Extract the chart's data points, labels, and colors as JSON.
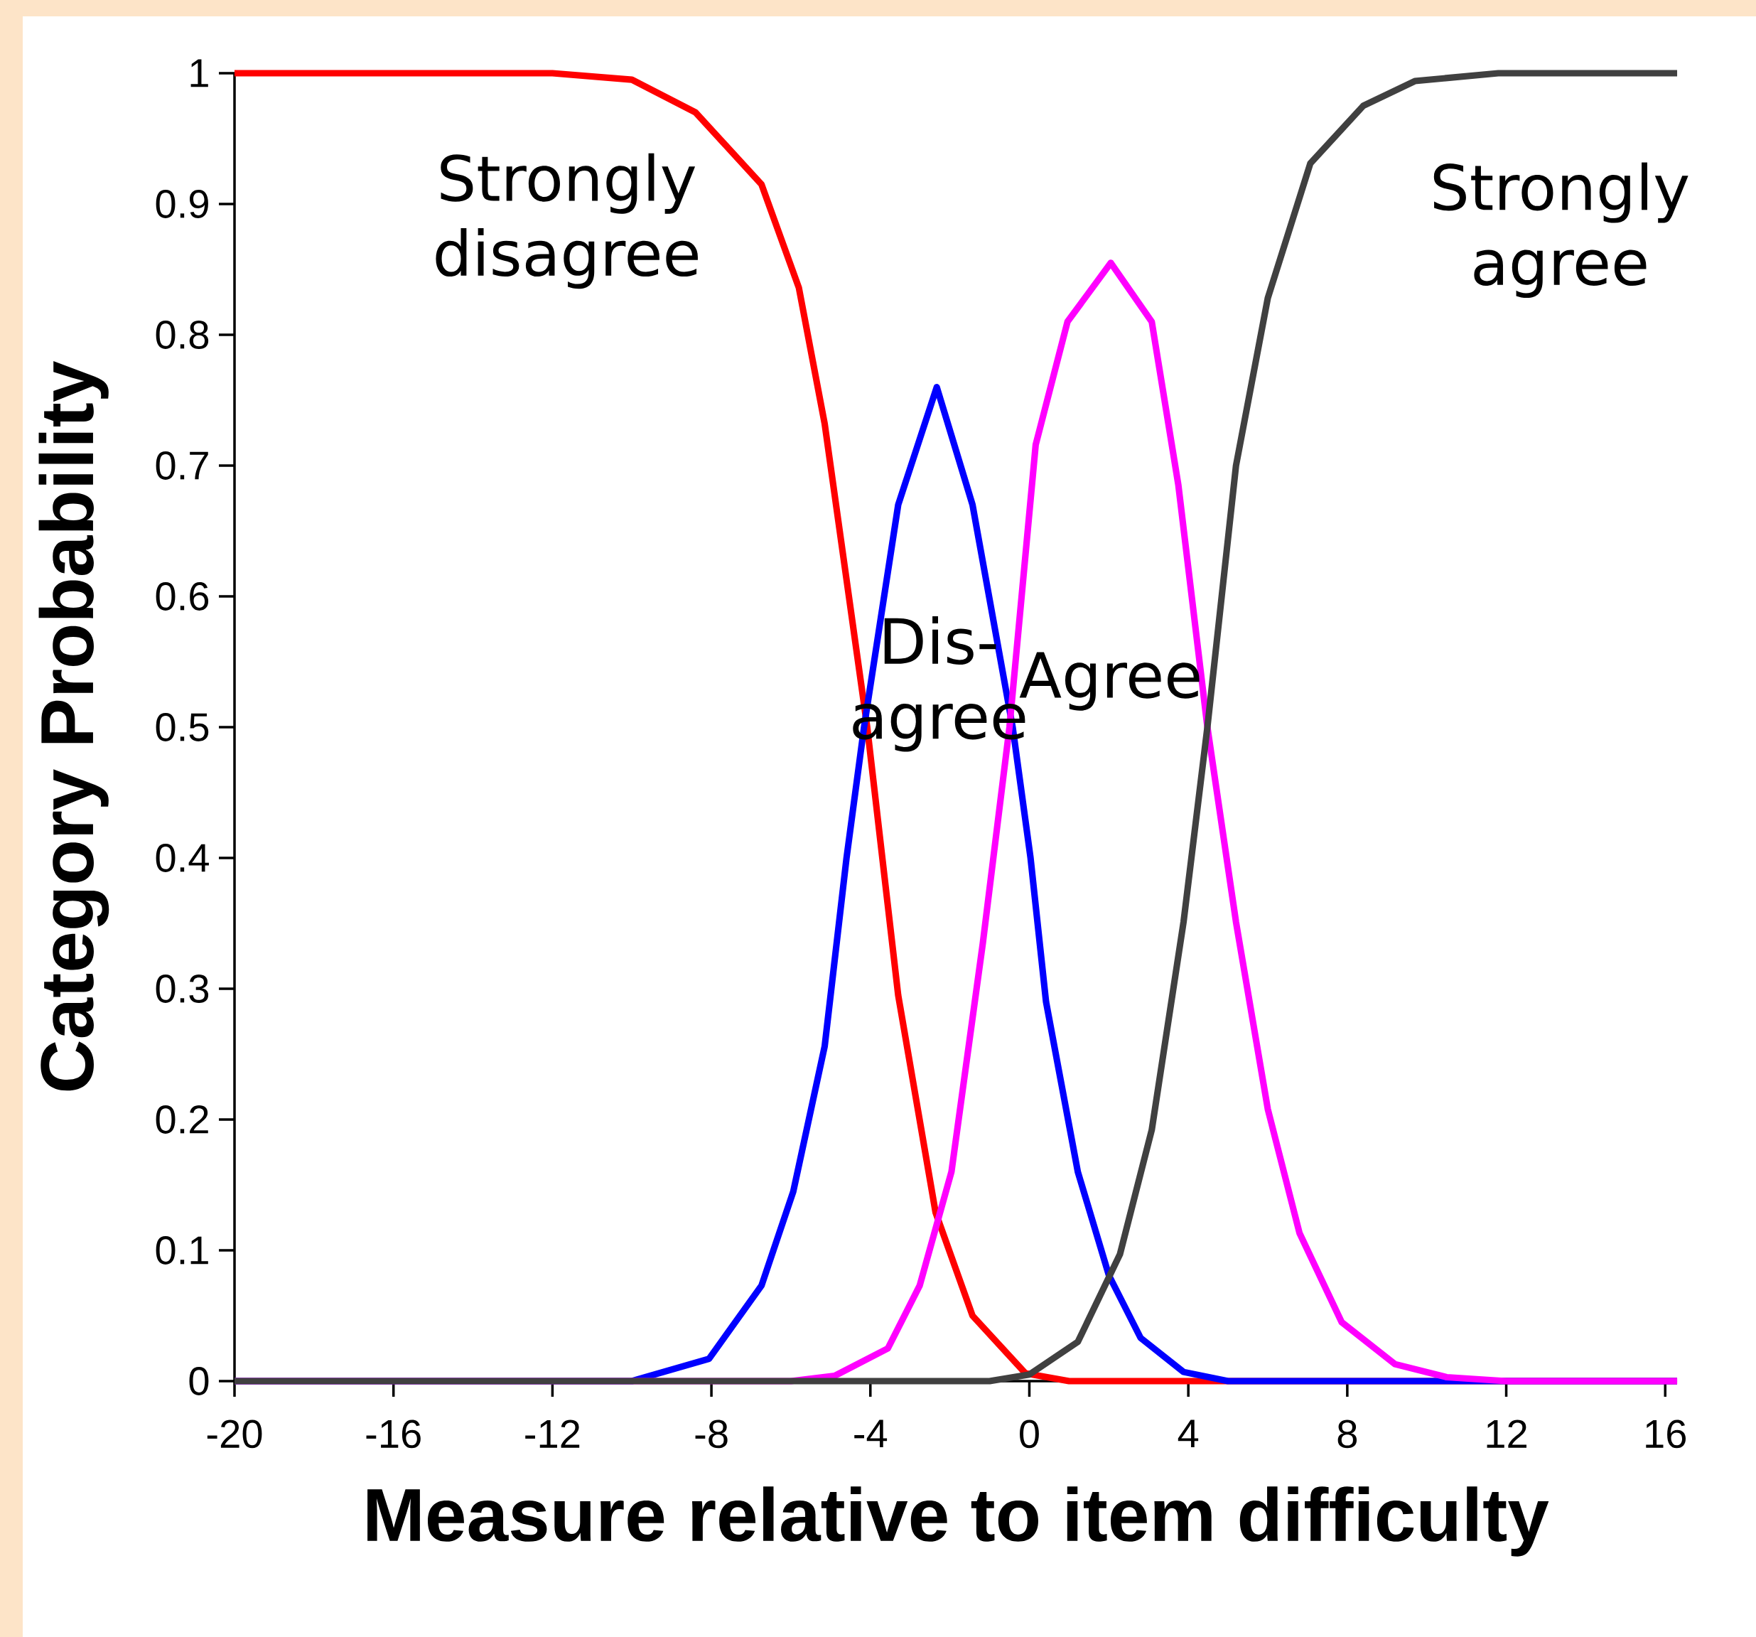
{
  "chart_data": {
    "type": "line",
    "xlabel": "Measure relative to item difficulty",
    "ylabel": "Category Probability",
    "xlim": [
      -20,
      16.3
    ],
    "ylim": [
      0,
      1
    ],
    "xticks": [
      -20,
      -16,
      -12,
      -8,
      -4,
      0,
      4,
      8,
      12,
      16
    ],
    "yticks": [
      0,
      0.1,
      0.2,
      0.3,
      0.4,
      0.5,
      0.6,
      0.7,
      0.8,
      0.9,
      1
    ],
    "series": [
      {
        "name": "Strongly disagree",
        "color": "#ff0000",
        "x": [
          -20,
          -12,
          -10,
          -8.4,
          -6.74,
          -5.8,
          -5.15,
          -4.08,
          -3.3,
          -2.36,
          -1.43,
          -0.1,
          1,
          16.3
        ],
        "values": [
          1,
          1,
          0.995,
          0.97,
          0.915,
          0.836,
          0.732,
          0.5,
          0.295,
          0.129,
          0.05,
          0.006,
          0,
          0
        ]
      },
      {
        "name": "Dis-agree",
        "color": "#0000ff",
        "x": [
          -20,
          -10,
          -9.66,
          -8.06,
          -6.74,
          -5.94,
          -5.15,
          -4.6,
          -4.16,
          -3.3,
          -2.33,
          -1.43,
          -0.42,
          0.03,
          0.42,
          1.22,
          2.0,
          2.8,
          3.88,
          5,
          16.3
        ],
        "values": [
          0,
          0,
          0.003,
          0.017,
          0.073,
          0.145,
          0.256,
          0.4,
          0.5,
          0.67,
          0.76,
          0.67,
          0.5,
          0.4,
          0.29,
          0.16,
          0.081,
          0.033,
          0.007,
          0,
          0
        ]
      },
      {
        "name": "Agree",
        "color": "#ff00ff",
        "x": [
          -20,
          -6,
          -4.9,
          -3.56,
          -2.76,
          -1.96,
          -1.17,
          -0.5,
          0.16,
          0.96,
          2.05,
          3.08,
          3.75,
          4.48,
          5.2,
          6.0,
          6.8,
          7.86,
          9.2,
          10.5,
          12,
          16.3
        ],
        "values": [
          0,
          0,
          0.004,
          0.025,
          0.073,
          0.16,
          0.335,
          0.5,
          0.716,
          0.81,
          0.855,
          0.81,
          0.685,
          0.5,
          0.351,
          0.208,
          0.113,
          0.045,
          0.013,
          0.003,
          0,
          0
        ]
      },
      {
        "name": "Strongly agree",
        "color": "#404040",
        "x": [
          -20,
          -1,
          0,
          1.22,
          2.28,
          3.08,
          3.88,
          4.48,
          5.2,
          6.0,
          7.07,
          8.4,
          9.7,
          11.8,
          16.3
        ],
        "values": [
          0,
          0,
          0.005,
          0.03,
          0.097,
          0.192,
          0.351,
          0.5,
          0.7,
          0.828,
          0.931,
          0.975,
          0.994,
          1,
          1
        ]
      }
    ]
  }
}
